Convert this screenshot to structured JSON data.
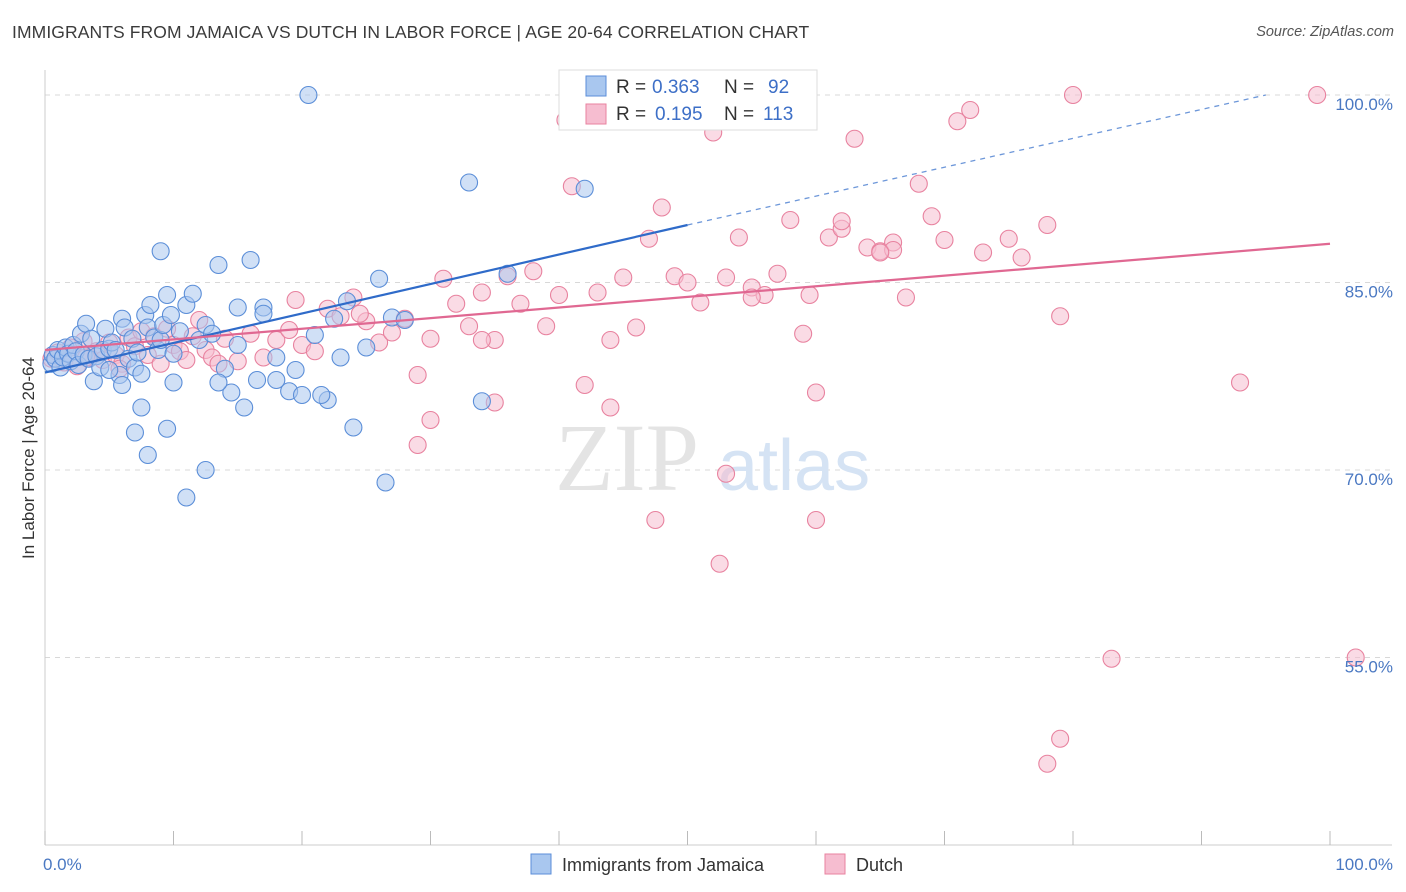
{
  "title": "IMMIGRANTS FROM JAMAICA VS DUTCH IN LABOR FORCE | AGE 20-64 CORRELATION CHART",
  "source": "Source: ZipAtlas.com",
  "watermark": {
    "zip": "ZIP",
    "atlas": "atlas"
  },
  "colors": {
    "jamaica_fill": "#a9c7ef",
    "jamaica_stroke": "#5b8ed8",
    "jamaica_line": "#2f6bc9",
    "dutch_fill": "#f6bdd0",
    "dutch_stroke": "#e8829f",
    "dutch_line": "#e06892",
    "axis_label": "#4a78c2",
    "grid": "#d8d8d8"
  },
  "legend": {
    "rows": [
      {
        "r_label": "R = ",
        "r_value": "0.363",
        "n_label": "N = ",
        "n_value": "92"
      },
      {
        "r_label": "R = ",
        "r_value": "0.195",
        "n_label": "N = ",
        "n_value": "113"
      }
    ]
  },
  "bottom_legend": [
    "Immigrants from Jamaica",
    "Dutch"
  ],
  "chart_data": {
    "type": "scatter",
    "title": "IMMIGRANTS FROM JAMAICA VS DUTCH IN LABOR FORCE | AGE 20-64 CORRELATION CHART",
    "xlabel": "",
    "ylabel": "In Labor Force | Age 20-64",
    "xlim": [
      0,
      100
    ],
    "ylim": [
      40,
      102
    ],
    "x_tick_labels": [
      "0.0%",
      "100.0%"
    ],
    "y_ticks": [
      55,
      70,
      85,
      100
    ],
    "y_tick_labels": [
      "55.0%",
      "70.0%",
      "85.0%",
      "100.0%"
    ],
    "grid": "horizontal dashed",
    "legend_position": "top-center",
    "series": [
      {
        "name": "Immigrants from Jamaica",
        "R": 0.363,
        "N": 92,
        "trend": {
          "x0": 0,
          "y0": 77.8,
          "x1": 50,
          "y1": 89.6,
          "dashed_to_x": 95,
          "dashed_to_y": 100
        },
        "points": [
          [
            0.5,
            78.5
          ],
          [
            0.6,
            79.2
          ],
          [
            0.8,
            78.9
          ],
          [
            1.0,
            79.6
          ],
          [
            1.2,
            78.2
          ],
          [
            1.4,
            79.0
          ],
          [
            1.6,
            79.8
          ],
          [
            1.8,
            79.3
          ],
          [
            2.0,
            78.7
          ],
          [
            2.2,
            80.0
          ],
          [
            2.4,
            79.5
          ],
          [
            2.6,
            78.4
          ],
          [
            2.8,
            80.9
          ],
          [
            3.0,
            79.2
          ],
          [
            3.2,
            81.7
          ],
          [
            3.4,
            78.9
          ],
          [
            3.6,
            80.5
          ],
          [
            3.8,
            77.1
          ],
          [
            4.0,
            79.1
          ],
          [
            4.3,
            78.2
          ],
          [
            4.5,
            79.6
          ],
          [
            4.7,
            81.3
          ],
          [
            5.0,
            79.7
          ],
          [
            5.2,
            80.2
          ],
          [
            5.5,
            79.6
          ],
          [
            5.8,
            77.6
          ],
          [
            6.0,
            82.1
          ],
          [
            6.2,
            81.4
          ],
          [
            6.5,
            78.9
          ],
          [
            6.8,
            80.5
          ],
          [
            7.0,
            78.2
          ],
          [
            7.2,
            79.4
          ],
          [
            7.5,
            77.7
          ],
          [
            7.8,
            82.4
          ],
          [
            8.0,
            81.4
          ],
          [
            8.2,
            83.2
          ],
          [
            8.5,
            80.6
          ],
          [
            8.8,
            79.6
          ],
          [
            9.0,
            80.4
          ],
          [
            9.2,
            81.6
          ],
          [
            9.5,
            84.0
          ],
          [
            9.8,
            82.4
          ],
          [
            10.0,
            79.3
          ],
          [
            10.5,
            81.1
          ],
          [
            11.0,
            83.2
          ],
          [
            11.5,
            84.1
          ],
          [
            12.0,
            80.4
          ],
          [
            12.5,
            81.6
          ],
          [
            13.0,
            80.9
          ],
          [
            13.5,
            86.4
          ],
          [
            14.0,
            78.1
          ],
          [
            14.5,
            76.2
          ],
          [
            15.0,
            83.0
          ],
          [
            15.5,
            75.0
          ],
          [
            16.0,
            86.8
          ],
          [
            16.5,
            77.2
          ],
          [
            17.0,
            83.0
          ],
          [
            18.0,
            77.2
          ],
          [
            19.0,
            76.3
          ],
          [
            20.0,
            76.0
          ],
          [
            21.0,
            80.8
          ],
          [
            22.0,
            75.6
          ],
          [
            22.5,
            82.1
          ],
          [
            23.0,
            79.0
          ],
          [
            23.5,
            83.5
          ],
          [
            24.0,
            73.4
          ],
          [
            25.0,
            79.8
          ],
          [
            7.0,
            73.0
          ],
          [
            7.5,
            75.0
          ],
          [
            8.0,
            71.2
          ],
          [
            9.0,
            87.5
          ],
          [
            9.5,
            73.3
          ],
          [
            11.0,
            67.8
          ],
          [
            12.5,
            70.0
          ],
          [
            13.5,
            77.0
          ],
          [
            17.0,
            82.5
          ],
          [
            18.0,
            79.0
          ],
          [
            19.5,
            78.0
          ],
          [
            21.5,
            76.0
          ],
          [
            26.0,
            85.3
          ],
          [
            27.0,
            82.2
          ],
          [
            28.0,
            82.0
          ],
          [
            26.5,
            69.0
          ],
          [
            20.5,
            100.0
          ],
          [
            33.0,
            93.0
          ],
          [
            42.0,
            92.5
          ],
          [
            36.0,
            85.7
          ],
          [
            34.0,
            75.5
          ],
          [
            15.0,
            80.0
          ],
          [
            10.0,
            77.0
          ],
          [
            6.0,
            76.8
          ],
          [
            5.0,
            78.0
          ]
        ]
      },
      {
        "name": "Dutch",
        "R": 0.195,
        "N": 113,
        "trend": {
          "x0": 0,
          "y0": 79.6,
          "x1": 100,
          "y1": 88.1
        },
        "points": [
          [
            0.5,
            78.9
          ],
          [
            1.0,
            79.4
          ],
          [
            1.5,
            78.6
          ],
          [
            2.0,
            79.8
          ],
          [
            2.5,
            78.3
          ],
          [
            3.0,
            80.3
          ],
          [
            3.5,
            79.0
          ],
          [
            4.0,
            79.5
          ],
          [
            4.5,
            78.8
          ],
          [
            5.0,
            80.2
          ],
          [
            5.5,
            79.2
          ],
          [
            6.0,
            78.5
          ],
          [
            6.5,
            80.6
          ],
          [
            7.0,
            79.9
          ],
          [
            7.5,
            81.1
          ],
          [
            8.0,
            79.2
          ],
          [
            8.5,
            80.7
          ],
          [
            9.0,
            78.5
          ],
          [
            9.5,
            81.3
          ],
          [
            10.0,
            80.0
          ],
          [
            10.5,
            79.5
          ],
          [
            11.0,
            78.8
          ],
          [
            11.5,
            80.7
          ],
          [
            12.0,
            82.0
          ],
          [
            12.5,
            79.6
          ],
          [
            13.0,
            79.0
          ],
          [
            13.5,
            78.5
          ],
          [
            14.0,
            80.5
          ],
          [
            15.0,
            78.7
          ],
          [
            16.0,
            80.9
          ],
          [
            17.0,
            79.0
          ],
          [
            18.0,
            80.4
          ],
          [
            19.0,
            81.2
          ],
          [
            20.0,
            80.0
          ],
          [
            21.0,
            79.5
          ],
          [
            22.0,
            82.9
          ],
          [
            23.0,
            82.3
          ],
          [
            24.0,
            83.8
          ],
          [
            25.0,
            81.9
          ],
          [
            26.0,
            80.2
          ],
          [
            27.0,
            81.0
          ],
          [
            28.0,
            82.1
          ],
          [
            29.0,
            77.6
          ],
          [
            30.0,
            74.0
          ],
          [
            31.0,
            85.3
          ],
          [
            32.0,
            83.3
          ],
          [
            33.0,
            81.5
          ],
          [
            34.0,
            84.2
          ],
          [
            35.0,
            80.4
          ],
          [
            36.0,
            85.5
          ],
          [
            37.0,
            83.3
          ],
          [
            38.0,
            85.9
          ],
          [
            39.0,
            81.5
          ],
          [
            40.0,
            84.0
          ],
          [
            41.0,
            92.7
          ],
          [
            42.0,
            76.8
          ],
          [
            43.0,
            84.2
          ],
          [
            44.0,
            80.4
          ],
          [
            45.0,
            85.4
          ],
          [
            46.0,
            81.4
          ],
          [
            47.0,
            88.5
          ],
          [
            48.0,
            91.0
          ],
          [
            49.0,
            85.5
          ],
          [
            50.0,
            85.0
          ],
          [
            51.0,
            83.4
          ],
          [
            52.0,
            97.0
          ],
          [
            53.0,
            69.7
          ],
          [
            54.0,
            88.6
          ],
          [
            55.0,
            84.6
          ],
          [
            56.0,
            84.0
          ],
          [
            57.0,
            85.7
          ],
          [
            58.0,
            90.0
          ],
          [
            59.0,
            80.9
          ],
          [
            60.0,
            76.2
          ],
          [
            61.0,
            88.6
          ],
          [
            62.0,
            89.3
          ],
          [
            63.0,
            96.5
          ],
          [
            64.0,
            87.8
          ],
          [
            65.0,
            87.5
          ],
          [
            66.0,
            88.2
          ],
          [
            67.0,
            83.8
          ],
          [
            68.0,
            92.9
          ],
          [
            69.0,
            90.3
          ],
          [
            70.0,
            88.4
          ],
          [
            71.0,
            97.9
          ],
          [
            72.0,
            98.8
          ],
          [
            73.0,
            87.4
          ],
          [
            75.0,
            88.5
          ],
          [
            76.0,
            87.0
          ],
          [
            78.0,
            89.6
          ],
          [
            79.0,
            82.3
          ],
          [
            80.0,
            100.0
          ],
          [
            40.5,
            98.0
          ],
          [
            29.0,
            72.0
          ],
          [
            35.0,
            75.4
          ],
          [
            44.0,
            75.0
          ],
          [
            60.0,
            66.0
          ],
          [
            47.5,
            66.0
          ],
          [
            52.5,
            62.5
          ],
          [
            53.0,
            85.4
          ],
          [
            62.0,
            89.9
          ],
          [
            66.0,
            87.6
          ],
          [
            93.0,
            77.0
          ],
          [
            99.0,
            100.0
          ],
          [
            79.0,
            48.5
          ],
          [
            78.0,
            46.5
          ],
          [
            102.0,
            55.0
          ],
          [
            83.0,
            54.9
          ],
          [
            5.8,
            78.1
          ],
          [
            3.2,
            79.0
          ],
          [
            19.5,
            83.6
          ],
          [
            24.5,
            82.5
          ],
          [
            30.0,
            80.5
          ],
          [
            34.0,
            80.4
          ],
          [
            55.0,
            83.8
          ],
          [
            59.5,
            84.0
          ],
          [
            65.0,
            87.4
          ]
        ]
      }
    ]
  }
}
